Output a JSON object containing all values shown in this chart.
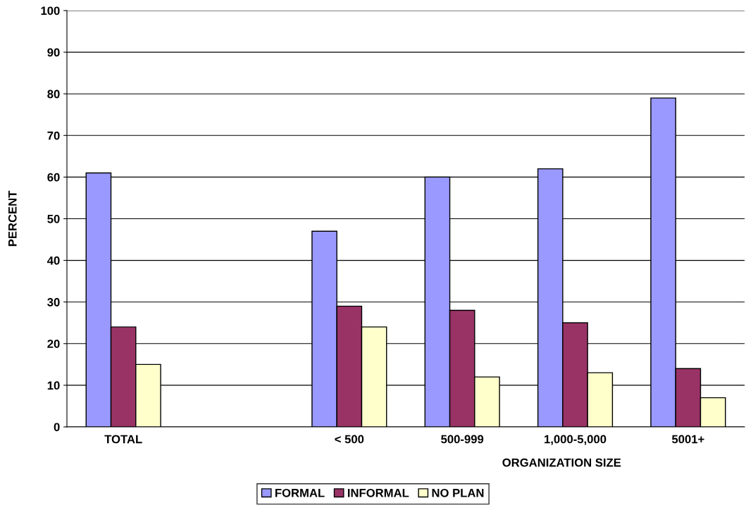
{
  "chart_data": {
    "type": "bar",
    "xlabel": "ORGANIZATION SIZE",
    "ylabel": "PERCENT",
    "categories": [
      "TOTAL",
      null,
      "< 500",
      "500-999",
      "1,000-5,000",
      "5001+"
    ],
    "series": [
      {
        "name": "FORMAL",
        "color": "#9999ff",
        "values": [
          61,
          null,
          47,
          60,
          62,
          79
        ]
      },
      {
        "name": "INFORMAL",
        "color": "#993366",
        "values": [
          24,
          null,
          29,
          28,
          25,
          14
        ]
      },
      {
        "name": "NO PLAN",
        "color": "#ffffcc",
        "values": [
          15,
          null,
          24,
          12,
          13,
          7
        ]
      }
    ],
    "ylim": [
      0,
      100
    ],
    "yticks": [
      0,
      10,
      20,
      30,
      40,
      50,
      60,
      70,
      80,
      90,
      100
    ],
    "grid": "y",
    "legend": "bottom"
  }
}
